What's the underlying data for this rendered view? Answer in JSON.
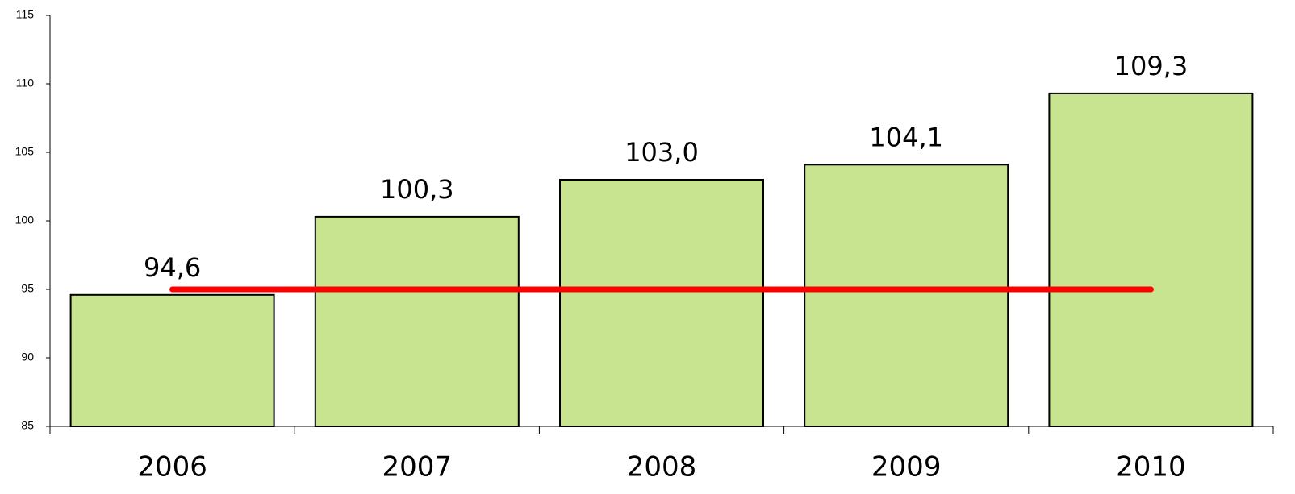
{
  "chart_data": {
    "type": "bar",
    "categories": [
      "2006",
      "2007",
      "2008",
      "2009",
      "2010"
    ],
    "values": [
      94.6,
      100.3,
      103.0,
      104.1,
      109.3
    ],
    "value_labels": [
      "94,6",
      "100,3",
      "103,0",
      "104,1",
      "109,3"
    ],
    "color": "#c8e491",
    "ylim": [
      85,
      115
    ],
    "yticks": [
      85,
      90,
      95,
      100,
      105,
      110,
      115
    ],
    "reference_line": {
      "value": 95,
      "color": "#ff0000"
    }
  }
}
